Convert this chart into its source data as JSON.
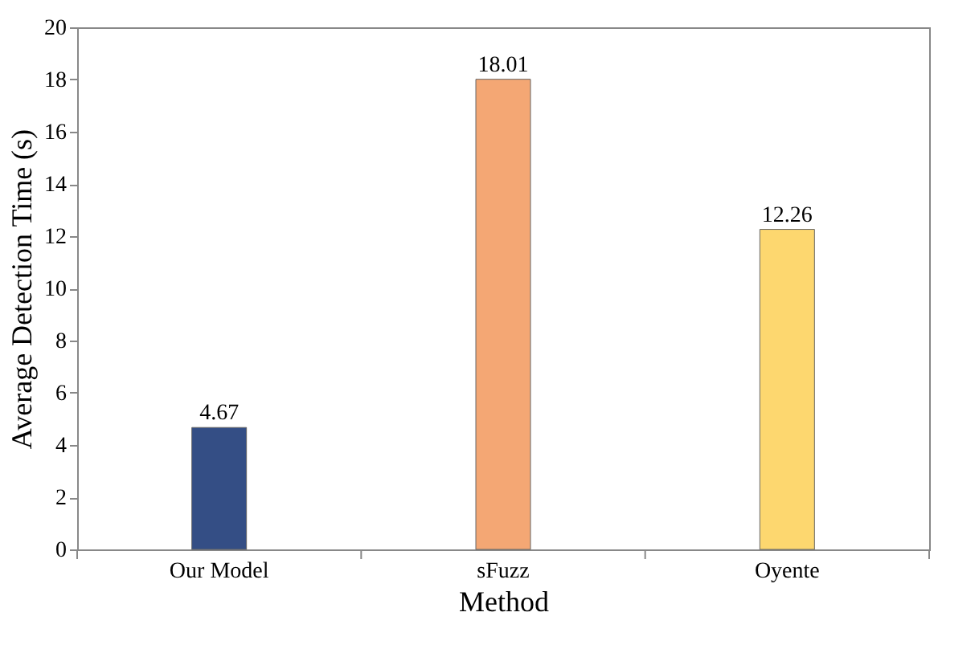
{
  "chart_data": {
    "type": "bar",
    "categories": [
      "Our Model",
      "sFuzz",
      "Oyente"
    ],
    "values": [
      4.67,
      18.01,
      12.26
    ],
    "colors": [
      "#344e85",
      "#f4a774",
      "#fdd76f"
    ],
    "xlabel": "Method",
    "ylabel": "Average Detection Time (s)",
    "ylim": [
      0,
      20
    ],
    "yticks": [
      0,
      2,
      4,
      6,
      8,
      10,
      12,
      14,
      16,
      18,
      20
    ],
    "data_labels": true,
    "grid": false,
    "legend": false
  }
}
